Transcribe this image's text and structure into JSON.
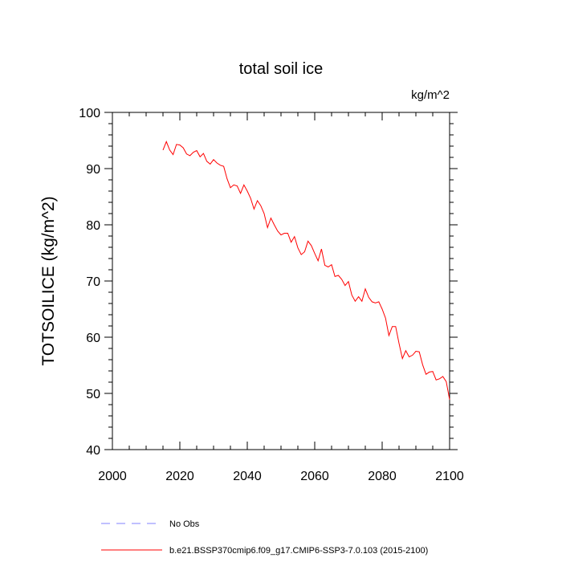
{
  "chart_data": {
    "type": "line",
    "title": "total soil ice",
    "units": "kg/m^2",
    "xlabel": "",
    "ylabel": "TOTSOILICE  (kg/m^2)",
    "xlim": [
      2000,
      2100
    ],
    "ylim": [
      40,
      100
    ],
    "xticks": [
      2000,
      2020,
      2040,
      2060,
      2080,
      2100
    ],
    "yticks": [
      40,
      50,
      60,
      70,
      80,
      90,
      100
    ],
    "x_minor_step": 5,
    "y_minor_step": 2,
    "grid": false,
    "legend_position": "bottom",
    "series": [
      {
        "name": "No Obs",
        "color": "#8080ff",
        "style": "dashed",
        "x": [],
        "y": []
      },
      {
        "name": "b.e21.BSSP370cmip6.f09_g17.CMIP6-SSP3-7.0.103 (2015-2100)",
        "color": "#ff0000",
        "style": "solid",
        "x": [
          2015,
          2016,
          2017,
          2018,
          2019,
          2020,
          2021,
          2022,
          2023,
          2024,
          2025,
          2026,
          2027,
          2028,
          2029,
          2030,
          2031,
          2032,
          2033,
          2034,
          2035,
          2036,
          2037,
          2038,
          2039,
          2040,
          2041,
          2042,
          2043,
          2044,
          2045,
          2046,
          2047,
          2048,
          2049,
          2050,
          2051,
          2052,
          2053,
          2054,
          2055,
          2056,
          2057,
          2058,
          2059,
          2060,
          2061,
          2062,
          2063,
          2064,
          2065,
          2066,
          2067,
          2068,
          2069,
          2070,
          2071,
          2072,
          2073,
          2074,
          2075,
          2076,
          2077,
          2078,
          2079,
          2080,
          2081,
          2082,
          2083,
          2084,
          2085,
          2086,
          2087,
          2088,
          2089,
          2090,
          2091,
          2092,
          2093,
          2094,
          2095,
          2096,
          2097,
          2098,
          2099,
          2100
        ],
        "y": [
          93.3,
          94.8,
          93.3,
          92.5,
          94.3,
          94.2,
          93.7,
          92.6,
          92.3,
          92.9,
          93.2,
          92.1,
          92.7,
          91.3,
          90.8,
          91.6,
          91.0,
          90.6,
          90.4,
          88.2,
          86.6,
          87.1,
          86.9,
          85.6,
          87.1,
          86.0,
          84.7,
          82.8,
          84.3,
          83.4,
          82.0,
          79.5,
          81.2,
          80.0,
          78.9,
          78.2,
          78.5,
          78.5,
          76.9,
          77.9,
          75.9,
          74.7,
          75.2,
          77.1,
          76.3,
          74.9,
          73.6,
          75.7,
          72.8,
          72.5,
          72.9,
          70.8,
          71.0,
          70.3,
          69.2,
          69.9,
          67.5,
          66.4,
          67.2,
          66.4,
          68.6,
          67.1,
          66.3,
          66.1,
          66.3,
          65.0,
          63.4,
          60.3,
          61.9,
          61.9,
          58.9,
          56.2,
          57.6,
          56.5,
          56.8,
          57.5,
          57.4,
          55.1,
          53.4,
          53.8,
          53.9,
          52.4,
          52.6,
          53.0,
          52.1,
          48.9
        ]
      }
    ]
  }
}
